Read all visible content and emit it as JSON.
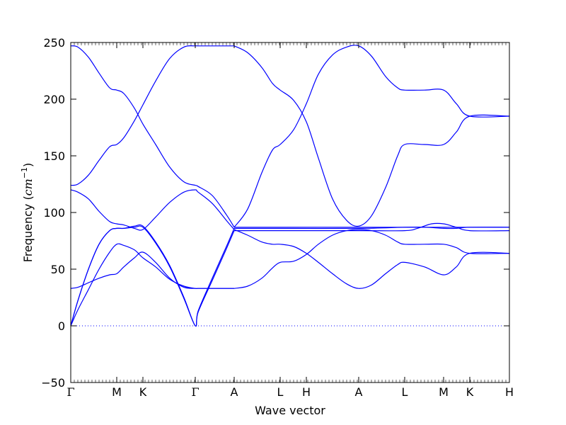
{
  "chart_data": {
    "type": "line",
    "title": "",
    "xlabel": "Wave vector",
    "ylabel_prefix": "Frequency (",
    "ylabel_unit": "cm",
    "ylabel_exp": "−1",
    "ylabel_suffix": ")",
    "ylim": [
      -50,
      250
    ],
    "yticks": [
      -50,
      0,
      50,
      100,
      150,
      200,
      250
    ],
    "grid": false,
    "legend": "none",
    "line_color": "#0000ff",
    "xlim": [
      0,
      620
    ],
    "xticks": [
      {
        "label": "Γ",
        "x": 0
      },
      {
        "label": "M",
        "x": 65
      },
      {
        "label": "K",
        "x": 102
      },
      {
        "label": "Γ",
        "x": 176
      },
      {
        "label": "A",
        "x": 231
      },
      {
        "label": "L",
        "x": 296
      },
      {
        "label": "H",
        "x": 333
      },
      {
        "label": "A",
        "x": 407
      },
      {
        "label": "L",
        "x": 472
      },
      {
        "label": "M",
        "x": 527
      },
      {
        "label": "K",
        "x": 564
      },
      {
        "label": "H",
        "x": 620
      }
    ],
    "zero_line": 0,
    "series": [
      {
        "x": [
          0,
          10,
          25,
          40,
          55,
          65,
          75,
          90,
          102,
          120,
          140,
          160,
          176,
          180,
          200,
          220,
          231
        ],
        "y": [
          247,
          246,
          237,
          223,
          210,
          208,
          205,
          192,
          178,
          160,
          140,
          127,
          124,
          123,
          115,
          98,
          87
        ]
      },
      {
        "x": [
          0,
          10,
          25,
          40,
          55,
          65,
          75,
          90,
          102,
          120,
          140,
          160,
          176,
          180,
          200,
          220,
          231
        ],
        "y": [
          124,
          125,
          133,
          146,
          158,
          160,
          166,
          181,
          195,
          216,
          236,
          246,
          247,
          247,
          247,
          247,
          247
        ]
      },
      {
        "x": [
          0,
          10,
          25,
          40,
          55,
          65,
          75,
          90,
          102,
          120,
          140,
          160,
          176,
          180,
          200,
          220,
          231
        ],
        "y": [
          120,
          118,
          112,
          101,
          92,
          90,
          89,
          86,
          85,
          96,
          109,
          118,
          120,
          118,
          108,
          93,
          85
        ]
      },
      {
        "x": [
          0,
          10,
          25,
          40,
          55,
          65,
          75,
          90,
          102,
          120,
          140,
          160,
          176,
          180,
          200,
          220,
          231
        ],
        "y": [
          0,
          22,
          50,
          72,
          84,
          86,
          86,
          87,
          87,
          73,
          52,
          24,
          0,
          12,
          40,
          68,
          84
        ]
      },
      {
        "x": [
          0,
          10,
          25,
          40,
          55,
          65,
          75,
          90,
          102,
          120,
          140,
          160,
          176,
          180,
          200,
          220,
          231
        ],
        "y": [
          0,
          22,
          50,
          72,
          84,
          86,
          86,
          88,
          88,
          74,
          53,
          25,
          0,
          13,
          42,
          70,
          86
        ]
      },
      {
        "x": [
          0,
          10,
          25,
          40,
          55,
          65,
          75,
          90,
          102,
          120,
          140,
          160,
          176,
          180,
          200,
          220,
          231
        ],
        "y": [
          0,
          14,
          32,
          50,
          65,
          72,
          71,
          67,
          60,
          52,
          41,
          35,
          33,
          33,
          33,
          33,
          33
        ]
      },
      {
        "x": [
          0,
          10,
          25,
          40,
          55,
          65,
          75,
          90,
          102,
          120,
          140,
          160,
          176,
          180,
          200,
          220,
          231
        ],
        "y": [
          33,
          34,
          38,
          42,
          45,
          46,
          52,
          60,
          65,
          56,
          42,
          34,
          33,
          33,
          33,
          33,
          33
        ]
      },
      {
        "x": [
          231,
          250,
          270,
          285,
          296,
          315,
          333,
          350,
          370,
          390,
          407,
          425,
          445,
          462,
          472,
          500,
          527,
          545,
          564,
          620
        ],
        "y": [
          87,
          103,
          135,
          155,
          160,
          173,
          196,
          222,
          239,
          246,
          247,
          238,
          220,
          210,
          208,
          208,
          208,
          196,
          185,
          185
        ]
      },
      {
        "x": [
          231,
          250,
          270,
          285,
          296,
          315,
          333,
          350,
          370,
          390,
          407,
          425,
          445,
          462,
          472,
          500,
          527,
          545,
          564,
          620
        ],
        "y": [
          247,
          241,
          228,
          214,
          208,
          199,
          180,
          148,
          112,
          93,
          88,
          97,
          122,
          150,
          160,
          160,
          160,
          171,
          185,
          185
        ]
      },
      {
        "x": [
          231,
          250,
          270,
          285,
          296,
          315,
          333,
          350,
          370,
          390,
          407,
          425,
          445,
          462,
          472,
          500,
          527,
          545,
          564,
          620
        ],
        "y": [
          85,
          80,
          74,
          72,
          72,
          70,
          64,
          56,
          46,
          37,
          33,
          36,
          46,
          54,
          56,
          52,
          45,
          52,
          64,
          64
        ]
      },
      {
        "x": [
          231,
          250,
          270,
          285,
          296,
          315,
          333,
          350,
          370,
          390,
          407,
          425,
          445,
          462,
          472,
          500,
          527,
          545,
          564,
          620
        ],
        "y": [
          33,
          35,
          42,
          51,
          56,
          57,
          63,
          72,
          80,
          84,
          85,
          84,
          80,
          74,
          72,
          72,
          72,
          69,
          64,
          64
        ]
      },
      {
        "x": [
          231,
          296,
          407,
          472,
          500,
          527,
          545,
          564,
          620
        ],
        "y": [
          87,
          87,
          87,
          87,
          87,
          87,
          87,
          87,
          87
        ]
      },
      {
        "x": [
          231,
          296,
          407,
          472,
          500,
          527,
          545,
          564,
          620
        ],
        "y": [
          86,
          86,
          86,
          87,
          87,
          86,
          86,
          87,
          87
        ]
      },
      {
        "x": [
          231,
          296,
          407,
          472,
          490,
          510,
          527,
          545,
          564,
          620
        ],
        "y": [
          84,
          84,
          84,
          84,
          86,
          90,
          90,
          87,
          84,
          84
        ]
      }
    ]
  }
}
